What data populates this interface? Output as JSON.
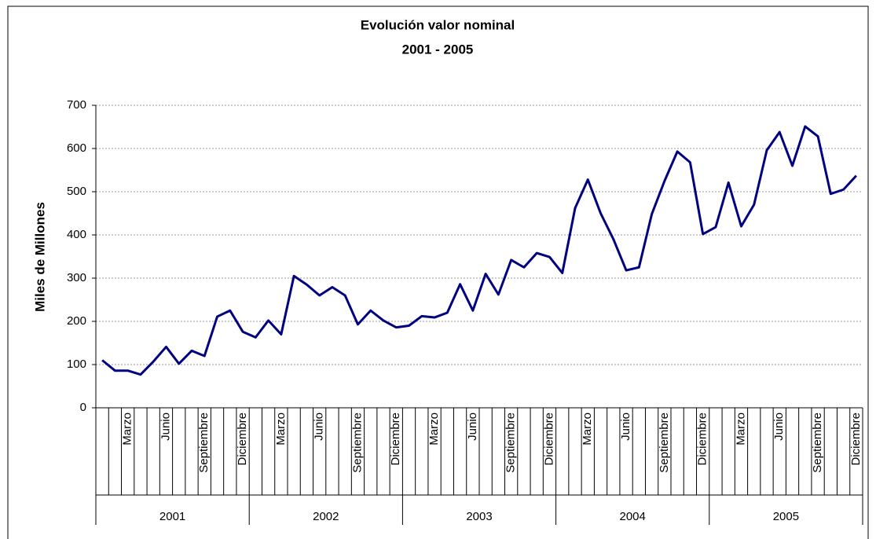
{
  "chart_data": {
    "type": "line",
    "title": "Evolución valor nominal",
    "subtitle": "2001 - 2005",
    "y_label": "Miles de Millones",
    "categories": [
      null,
      null,
      "Marzo",
      null,
      null,
      "Junio",
      null,
      null,
      "Septiembre",
      null,
      null,
      "Diciembre",
      null,
      null,
      "Marzo",
      null,
      null,
      "Junio",
      null,
      null,
      "Septiembre",
      null,
      null,
      "Diciembre",
      null,
      null,
      "Marzo",
      null,
      null,
      "Junio",
      null,
      null,
      "Septiembre",
      null,
      null,
      "Diciembre",
      null,
      null,
      "Marzo",
      null,
      null,
      "Junio",
      null,
      null,
      "Septiembre",
      null,
      null,
      "Diciembre",
      null,
      null,
      "Marzo",
      null,
      null,
      "Junio",
      null,
      null,
      "Septiembre",
      null,
      null,
      "Diciembre"
    ],
    "category_groups": [
      "2001",
      "2002",
      "2003",
      "2004",
      "2005"
    ],
    "values": [
      110,
      86,
      86,
      77,
      107,
      141,
      102,
      132,
      120,
      211,
      225,
      176,
      163,
      202,
      170,
      305,
      285,
      260,
      279,
      260,
      193,
      225,
      202,
      186,
      190,
      212,
      209,
      220,
      286,
      225,
      310,
      262,
      342,
      325,
      358,
      349,
      312,
      462,
      528,
      450,
      390,
      318,
      325,
      448,
      525,
      593,
      568,
      402,
      418,
      521,
      420,
      470,
      596,
      638,
      560,
      651,
      628,
      495,
      505,
      537
    ],
    "color": "#000080",
    "ylim": [
      0,
      700
    ],
    "yticks": [
      0,
      100,
      200,
      300,
      400,
      500,
      600,
      700
    ],
    "grid": true
  }
}
